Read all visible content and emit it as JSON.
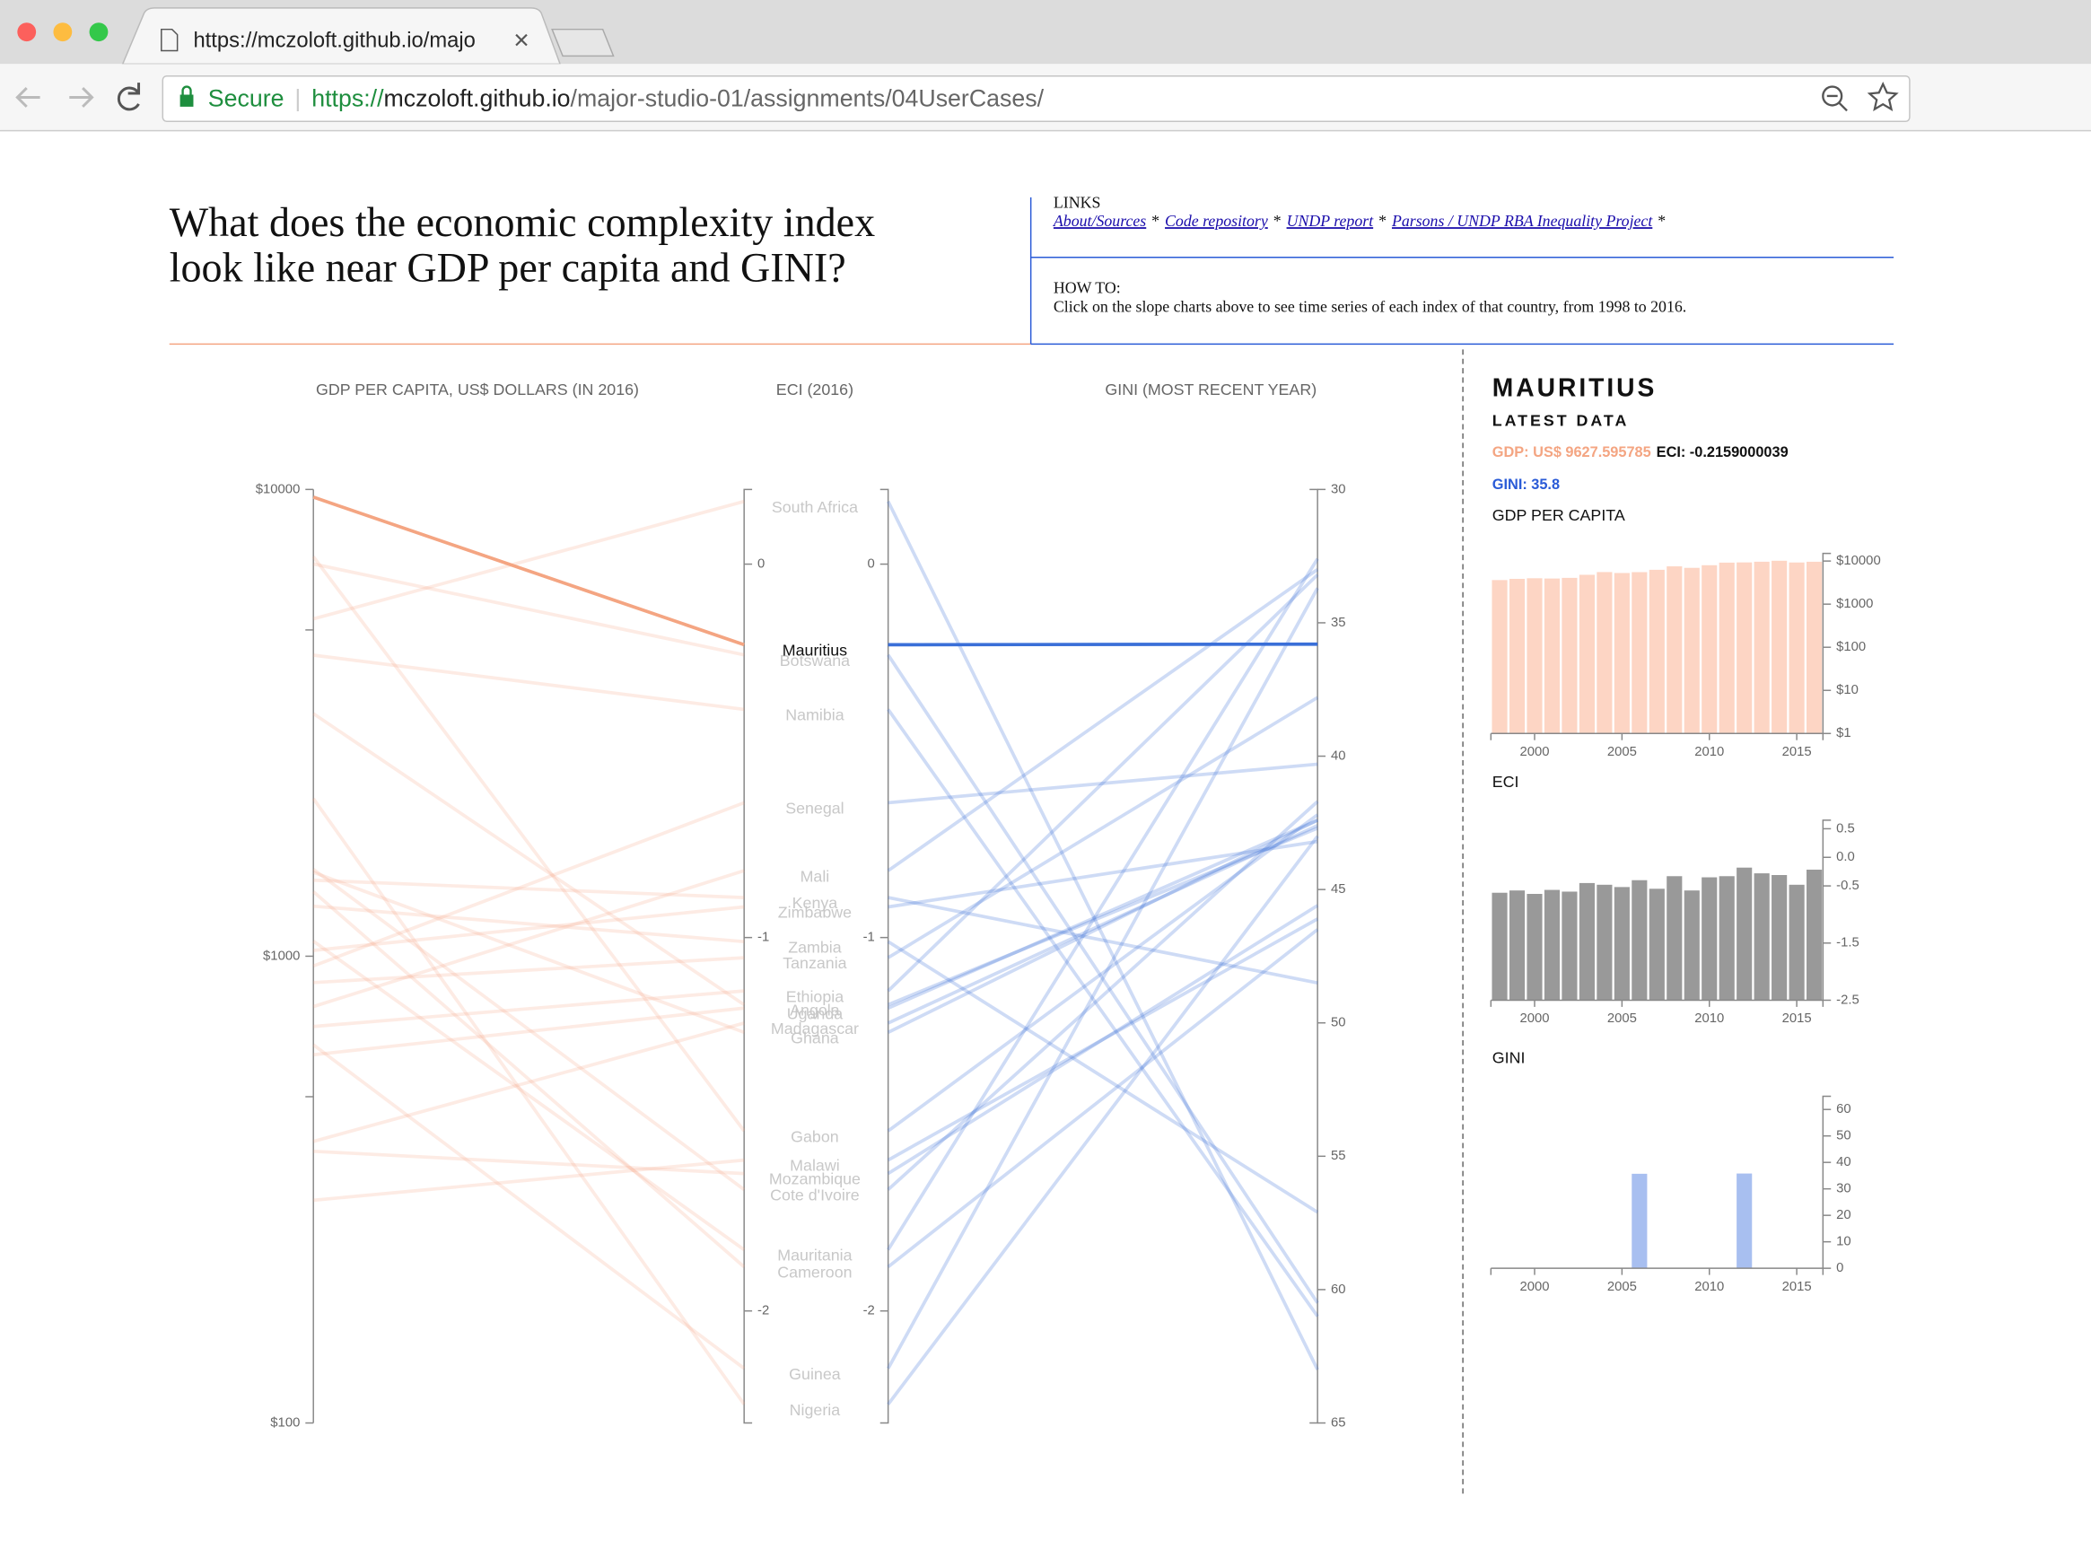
{
  "browser": {
    "tab_title": "https://mczoloft.github.io/majo",
    "secure_label": "Secure",
    "url_scheme": "https://",
    "url_host": "mczoloft.github.io",
    "url_path": "/major-studio-01/assignments/04UserCases/"
  },
  "header": {
    "title_lines": [
      "What does the economic complexity index",
      "look like near GDP per capita and GINI?"
    ],
    "links_label": "LINKS",
    "links": [
      "About/Sources",
      "Code repository",
      "UNDP report",
      "Parsons / UNDP RBA Inequality Project"
    ],
    "link_separator": "*",
    "howto_label": "HOW TO:",
    "howto_text": "Click on the slope charts above to see time series of each index of that country, from 1998 to 2016."
  },
  "chart_data": [
    {
      "type": "slope",
      "highlight": "Mauritius",
      "categories": [
        "South Africa",
        "Mauritius",
        "Botswana",
        "Namibia",
        "Senegal",
        "Mali",
        "Kenya",
        "Zimbabwe",
        "Zambia",
        "Tanzania",
        "Ethiopia",
        "Uganda",
        "Angola",
        "Madagascar",
        "Ghana",
        "Gabon",
        "Malawi",
        "Mozambique",
        "Cote d'Ivoire",
        "Mauritania",
        "Cameroon",
        "Guinea",
        "Nigeria"
      ],
      "series": [
        {
          "name": "GDP PER CAPITA, US$ DOLLARS (IN 2016)",
          "color": "#f4a582",
          "log": true,
          "ylim": [
            100,
            10000
          ],
          "yticks": [
            {
              "value": 10000,
              "label": "$10000"
            },
            {
              "value": 1000,
              "label": "$1000"
            },
            {
              "value": 100,
              "label": "$100"
            }
          ],
          "minor_ticks": [
            5000,
            500
          ],
          "values": [
            5280,
            9627.595785,
            6924,
            4415,
            953,
            780,
            1455,
            1029,
            1280,
            878,
            707,
            615,
            3309,
            401,
            1513,
            7179,
            300,
            382,
            1535,
            1077,
            1375,
            646,
            2176
          ]
        },
        {
          "name": "ECI (2016)",
          "color": "#999999",
          "ylim": [
            -2.3,
            0.2
          ],
          "yticks": [
            0,
            -1,
            -2
          ],
          "values": [
            0.168,
            -0.2159000039,
            -0.243,
            -0.389,
            -0.639,
            -0.821,
            -0.893,
            -0.918,
            -1.011,
            -1.054,
            -1.143,
            -1.189,
            -1.18,
            -1.229,
            -1.254,
            -1.518,
            -1.596,
            -1.632,
            -1.675,
            -1.836,
            -1.882,
            -2.154,
            -2.25
          ]
        },
        {
          "name": "GINI (MOST RECENT YEAR)",
          "color": "#3a6fd8",
          "ylim": [
            65,
            30
          ],
          "yticks": [
            30,
            35,
            40,
            45,
            50,
            55,
            60,
            65
          ],
          "values": [
            63.0,
            35.8,
            60.5,
            61.0,
            40.3,
            33.0,
            48.5,
            43.2,
            57.1,
            37.8,
            33.2,
            42.4,
            42.7,
            42.6,
            42.4,
            42.2,
            46.1,
            45.6,
            41.7,
            32.6,
            46.5,
            33.7,
            43.0
          ]
        }
      ]
    },
    {
      "type": "bar",
      "title": "GDP PER CAPITA",
      "color": "#fdd5c4",
      "log": true,
      "x": [
        1998,
        1999,
        2000,
        2001,
        2002,
        2003,
        2004,
        2005,
        2006,
        2007,
        2008,
        2009,
        2010,
        2011,
        2012,
        2013,
        2014,
        2015,
        2016
      ],
      "xlim": [
        1997.5,
        2016.5
      ],
      "xticks": [
        2000,
        2005,
        2010,
        2015
      ],
      "ylim": [
        1,
        15000
      ],
      "yticks": [
        {
          "value": 10000,
          "label": "$10000"
        },
        {
          "value": 1000,
          "label": "$1000"
        },
        {
          "value": 100,
          "label": "$100"
        },
        {
          "value": 10,
          "label": "$10"
        },
        {
          "value": 1,
          "label": "$1"
        }
      ],
      "values": [
        3620,
        3860,
        3990,
        3930,
        4070,
        4800,
        5550,
        5280,
        5530,
        6270,
        7540,
        6950,
        8000,
        9190,
        9290,
        9640,
        10150,
        9260,
        9627.595785
      ]
    },
    {
      "type": "bar",
      "title": "ECI",
      "color": "#999999",
      "x": [
        1998,
        1999,
        2000,
        2001,
        2002,
        2003,
        2004,
        2005,
        2006,
        2007,
        2008,
        2009,
        2010,
        2011,
        2012,
        2013,
        2014,
        2015,
        2016
      ],
      "xlim": [
        1997.5,
        2016.5
      ],
      "xticks": [
        2000,
        2005,
        2010,
        2015
      ],
      "ylim": [
        -2.5,
        0.65
      ],
      "yticks": [
        0.5,
        {
          "value": 0,
          "label": "0.0"
        },
        -0.5,
        -1.5,
        -2.5
      ],
      "values": [
        -0.62,
        -0.58,
        -0.64,
        -0.57,
        -0.6,
        -0.45,
        -0.48,
        -0.52,
        -0.4,
        -0.55,
        -0.33,
        -0.58,
        -0.35,
        -0.33,
        -0.18,
        -0.28,
        -0.31,
        -0.48,
        -0.2159000039
      ]
    },
    {
      "type": "bar",
      "title": "GINI",
      "color": "#a8bff0",
      "x": [
        1998,
        1999,
        2000,
        2001,
        2002,
        2003,
        2004,
        2005,
        2006,
        2007,
        2008,
        2009,
        2010,
        2011,
        2012,
        2013,
        2014,
        2015,
        2016
      ],
      "xlim": [
        1997.5,
        2016.5
      ],
      "xticks": [
        2000,
        2005,
        2010,
        2015
      ],
      "ylim": [
        0,
        65
      ],
      "yticks": [
        60,
        50,
        40,
        30,
        20,
        10,
        0
      ],
      "values": [
        null,
        null,
        null,
        null,
        null,
        null,
        null,
        null,
        35.7,
        null,
        null,
        null,
        null,
        null,
        35.8,
        null,
        null,
        null,
        null
      ]
    }
  ],
  "detail": {
    "country": "MAURITIUS",
    "subtitle": "LATEST DATA",
    "gdp_label": "GDP: US$",
    "gdp": 9627.595785,
    "eci_label": "ECI:",
    "eci": -0.2159000039,
    "gini_label": "GINI:",
    "gini": 35.8
  }
}
